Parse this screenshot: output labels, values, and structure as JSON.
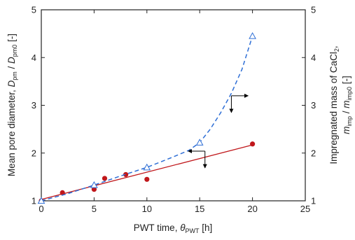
{
  "chart_data": {
    "type": "scatter",
    "title": "",
    "x_axis": {
      "label_text": "PWT time, ",
      "label_symbol": "θ",
      "label_subscript": "PWT",
      "label_unit": " [h]",
      "range": [
        0,
        25
      ],
      "ticks": [
        "0",
        "5",
        "10",
        "15",
        "20",
        "25"
      ]
    },
    "y_left": {
      "label_text": "Mean pore diameter, ",
      "label_symbol1": "D",
      "label_sub1": "pm",
      "label_sep": " / ",
      "label_symbol2": "D",
      "label_sub2": "pm0",
      "label_unit": " [-]",
      "range": [
        1,
        5
      ],
      "ticks": [
        "1",
        "2",
        "3",
        "4",
        "5"
      ]
    },
    "y_right": {
      "label_line1": "Impregnated mass of CaCl",
      "label_line1_sub": "2",
      "label_line1_tail": ",",
      "label_symbol1": "m",
      "label_sub1": "imp",
      "label_sep": " / ",
      "label_symbol2": "m",
      "label_sub2": "imp0",
      "label_unit": " [-]",
      "range": [
        1,
        5
      ],
      "ticks": [
        "1",
        "2",
        "3",
        "4",
        "5"
      ]
    },
    "series": [
      {
        "axis": "left",
        "color": "#c0171b",
        "marker": "filled-circle",
        "points": [
          [
            0,
            1.0
          ],
          [
            2,
            1.17
          ],
          [
            5,
            1.24
          ],
          [
            6,
            1.47
          ],
          [
            8,
            1.55
          ],
          [
            10,
            1.45
          ],
          [
            20,
            2.19
          ]
        ],
        "fit_line": [
          [
            0,
            1.03
          ],
          [
            20,
            2.17
          ]
        ]
      },
      {
        "axis": "right",
        "color": "#2f6fd6",
        "marker": "open-triangle",
        "line_style": "dashed",
        "points": [
          [
            0,
            1.0
          ],
          [
            5,
            1.33
          ],
          [
            10,
            1.7
          ],
          [
            15,
            2.22
          ],
          [
            20,
            4.45
          ]
        ],
        "curve": [
          [
            0,
            1.0
          ],
          [
            2.5,
            1.15
          ],
          [
            5,
            1.33
          ],
          [
            7.5,
            1.52
          ],
          [
            10,
            1.7
          ],
          [
            12.5,
            1.92
          ],
          [
            14,
            2.06
          ],
          [
            15,
            2.22
          ],
          [
            16,
            2.5
          ],
          [
            17,
            2.85
          ],
          [
            18,
            3.25
          ],
          [
            19,
            3.75
          ],
          [
            20,
            4.45
          ]
        ]
      }
    ],
    "annotations": [
      {
        "type": "axis-indicator-arrows",
        "at": [
          18,
          3.2
        ],
        "horizontal_to": "right",
        "vertical_to": "down"
      },
      {
        "type": "axis-indicator-arrows",
        "at": [
          15.5,
          2.04
        ],
        "horizontal_to": "left",
        "vertical_to": "down"
      }
    ]
  }
}
